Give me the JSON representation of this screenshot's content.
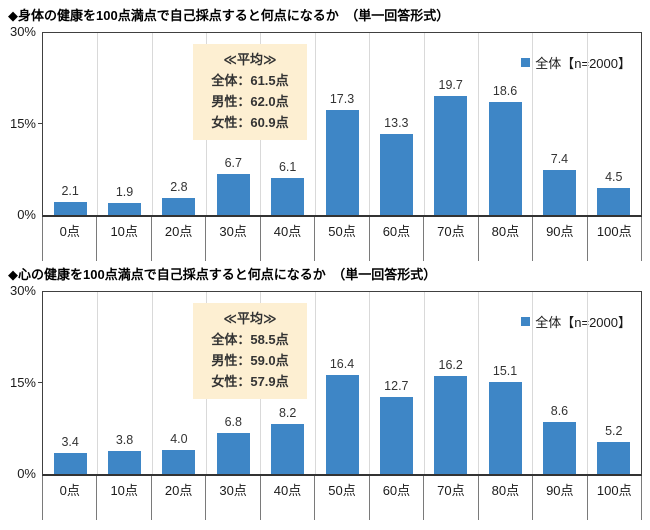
{
  "chart_data": [
    {
      "type": "bar",
      "title": "◆身体の健康を100点満点で自己採点すると何点になるか　（単一回答形式）",
      "categories": [
        "0点",
        "10点",
        "20点",
        "30点",
        "40点",
        "50点",
        "60点",
        "70点",
        "80点",
        "90点",
        "100点"
      ],
      "values": [
        2.1,
        1.9,
        2.8,
        6.7,
        6.1,
        17.3,
        13.3,
        19.7,
        18.6,
        7.4,
        4.5
      ],
      "series_name": "全体【n=2000】",
      "ylim": [
        0,
        30
      ],
      "yticks": [
        "0%",
        "15%",
        "30%"
      ],
      "ylabel": "",
      "xlabel": "",
      "grid": "vertical-category-lines",
      "legend_position": "top-right-inside",
      "bar_color": "#3E86C6",
      "annotation": {
        "heading": "≪平均≫",
        "lines": [
          "全体：61.5点",
          "男性：62.0点",
          "女性：60.9点"
        ],
        "bg": "#FDEFD2"
      }
    },
    {
      "type": "bar",
      "title": "◆心の健康を100点満点で自己採点すると何点になるか　（単一回答形式）",
      "categories": [
        "0点",
        "10点",
        "20点",
        "30点",
        "40点",
        "50点",
        "60点",
        "70点",
        "80点",
        "90点",
        "100点"
      ],
      "values": [
        3.4,
        3.8,
        4.0,
        6.8,
        8.2,
        16.4,
        12.7,
        16.2,
        15.1,
        8.6,
        5.2
      ],
      "series_name": "全体【n=2000】",
      "ylim": [
        0,
        30
      ],
      "yticks": [
        "0%",
        "15%",
        "30%"
      ],
      "ylabel": "",
      "xlabel": "",
      "grid": "vertical-category-lines",
      "legend_position": "top-right-inside",
      "bar_color": "#3E86C6",
      "annotation": {
        "heading": "≪平均≫",
        "lines": [
          "全体：58.5点",
          "男性：59.0点",
          "女性：57.9点"
        ],
        "bg": "#FDEFD2"
      }
    }
  ]
}
